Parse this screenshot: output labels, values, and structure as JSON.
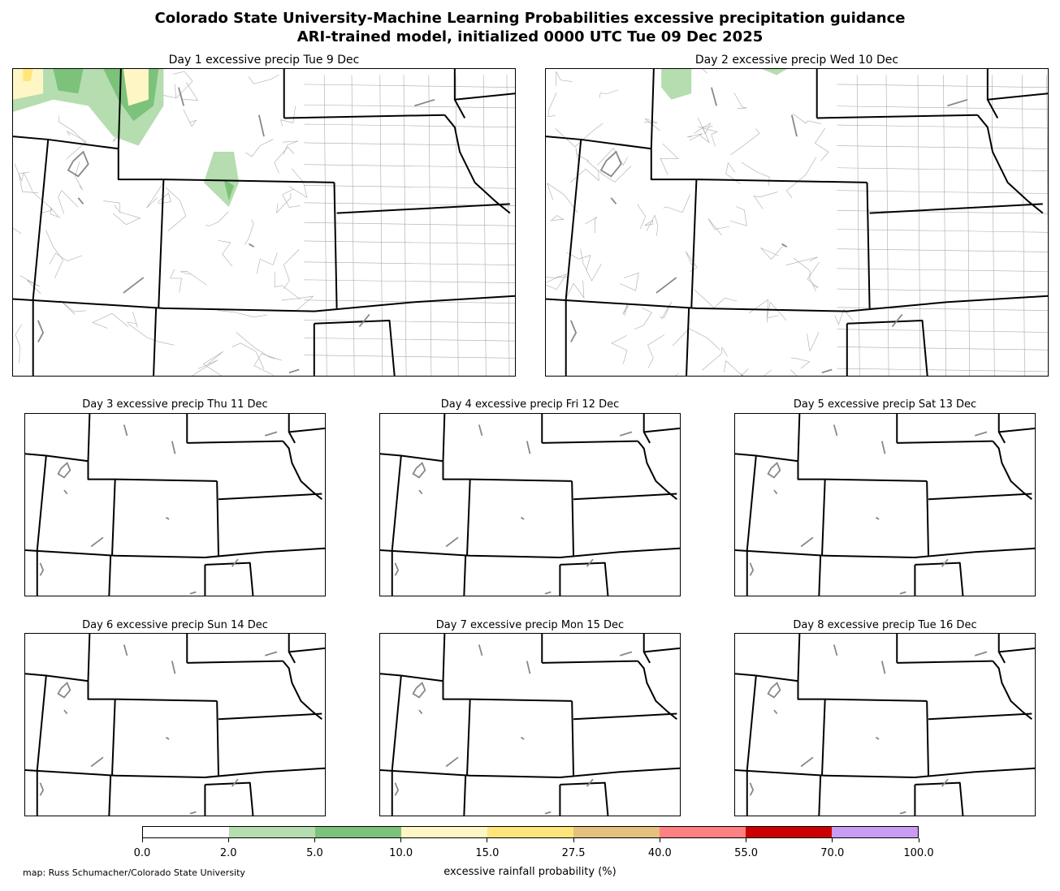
{
  "title": {
    "line1": "Colorado State University-Machine Learning Probabilities excessive precipitation guidance",
    "line2": "ARI-trained model, initialized 0000 UTC Tue 09 Dec 2025"
  },
  "panels": [
    {
      "title": "Day 1 excessive precip  Tue 9 Dec"
    },
    {
      "title": "Day 2 excessive precip  Wed 10 Dec"
    },
    {
      "title": "Day 3 excessive precip  Thu 11 Dec"
    },
    {
      "title": "Day 4 excessive precip  Fri 12 Dec"
    },
    {
      "title": "Day 5 excessive precip  Sat 13 Dec"
    },
    {
      "title": "Day 6 excessive precip  Sun 14 Dec"
    },
    {
      "title": "Day 7 excessive precip  Mon 15 Dec"
    },
    {
      "title": "Day 8 excessive precip  Tue 16 Dec"
    }
  ],
  "colorbar": {
    "colors": [
      "#ffffff",
      "#b5ddb0",
      "#7cc27a",
      "#fff6c5",
      "#ffe57a",
      "#e5c07e",
      "#ff8080",
      "#cc0000",
      "#c79cf2"
    ],
    "ticks": [
      "0.0",
      "2.0",
      "5.0",
      "10.0",
      "15.0",
      "27.5",
      "40.0",
      "55.0",
      "70.0",
      "100.0"
    ],
    "label": "excessive rainfall probability (%)"
  },
  "credit": "map: Russ Schumacher/Colorado State University",
  "colors": {
    "state_border": "#000000",
    "county_border": "#aaaaaa",
    "lakes": "#888888"
  }
}
